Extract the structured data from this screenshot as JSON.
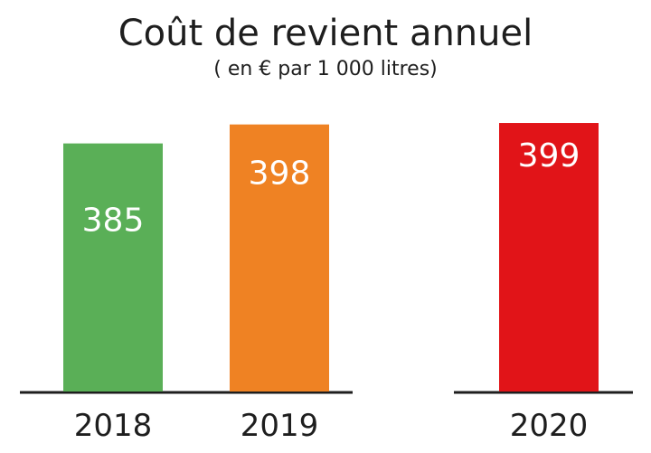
{
  "chart_data": {
    "type": "bar",
    "title": "Coût de revient annuel",
    "subtitle": "( en € par 1 000 litres)",
    "categories": [
      "2018",
      "2019",
      "2020"
    ],
    "values": [
      385,
      398,
      399
    ],
    "colors": [
      "#5aaf57",
      "#ef8223",
      "#e11418"
    ],
    "xlabel": "",
    "ylabel": "",
    "ylim": [
      215,
      430
    ],
    "grid": false,
    "legend": "none"
  }
}
